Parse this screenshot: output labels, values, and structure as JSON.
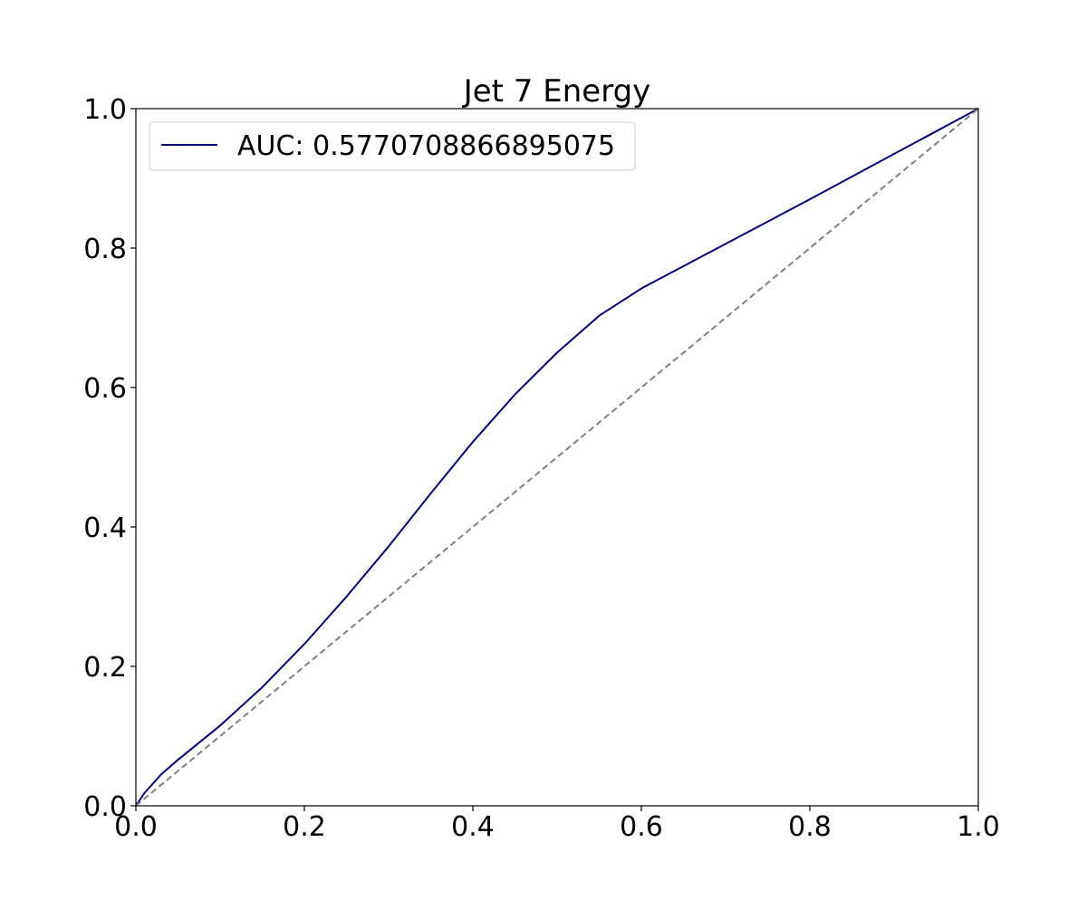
{
  "chart_data": {
    "type": "line",
    "title": "Jet 7 Energy",
    "xlabel": "",
    "ylabel": "",
    "xlim": [
      0.0,
      1.0
    ],
    "ylim": [
      0.0,
      1.0
    ],
    "grid": false,
    "legend_placement": "top-left",
    "x_ticks": [
      "0.0",
      "0.2",
      "0.4",
      "0.6",
      "0.8",
      "1.0"
    ],
    "y_ticks": [
      "0.0",
      "0.2",
      "0.4",
      "0.6",
      "0.8",
      "1.0"
    ],
    "series": [
      {
        "name": "AUC: 0.5770708866895075",
        "style": "solid",
        "color": "#000080",
        "x": [
          0.0,
          0.01,
          0.03,
          0.05,
          0.1,
          0.15,
          0.2,
          0.25,
          0.3,
          0.35,
          0.4,
          0.45,
          0.5,
          0.55,
          0.6,
          0.603,
          0.65,
          0.7,
          0.8,
          0.9,
          1.0
        ],
        "y": [
          0.0,
          0.018,
          0.045,
          0.066,
          0.115,
          0.17,
          0.232,
          0.3,
          0.372,
          0.448,
          0.522,
          0.59,
          0.65,
          0.703,
          0.742,
          0.744,
          0.774,
          0.806,
          0.87,
          0.935,
          1.0
        ]
      },
      {
        "name": "",
        "style": "dashed",
        "color": "#808080",
        "x": [
          0.0,
          1.0
        ],
        "y": [
          0.0,
          1.0
        ]
      }
    ]
  }
}
